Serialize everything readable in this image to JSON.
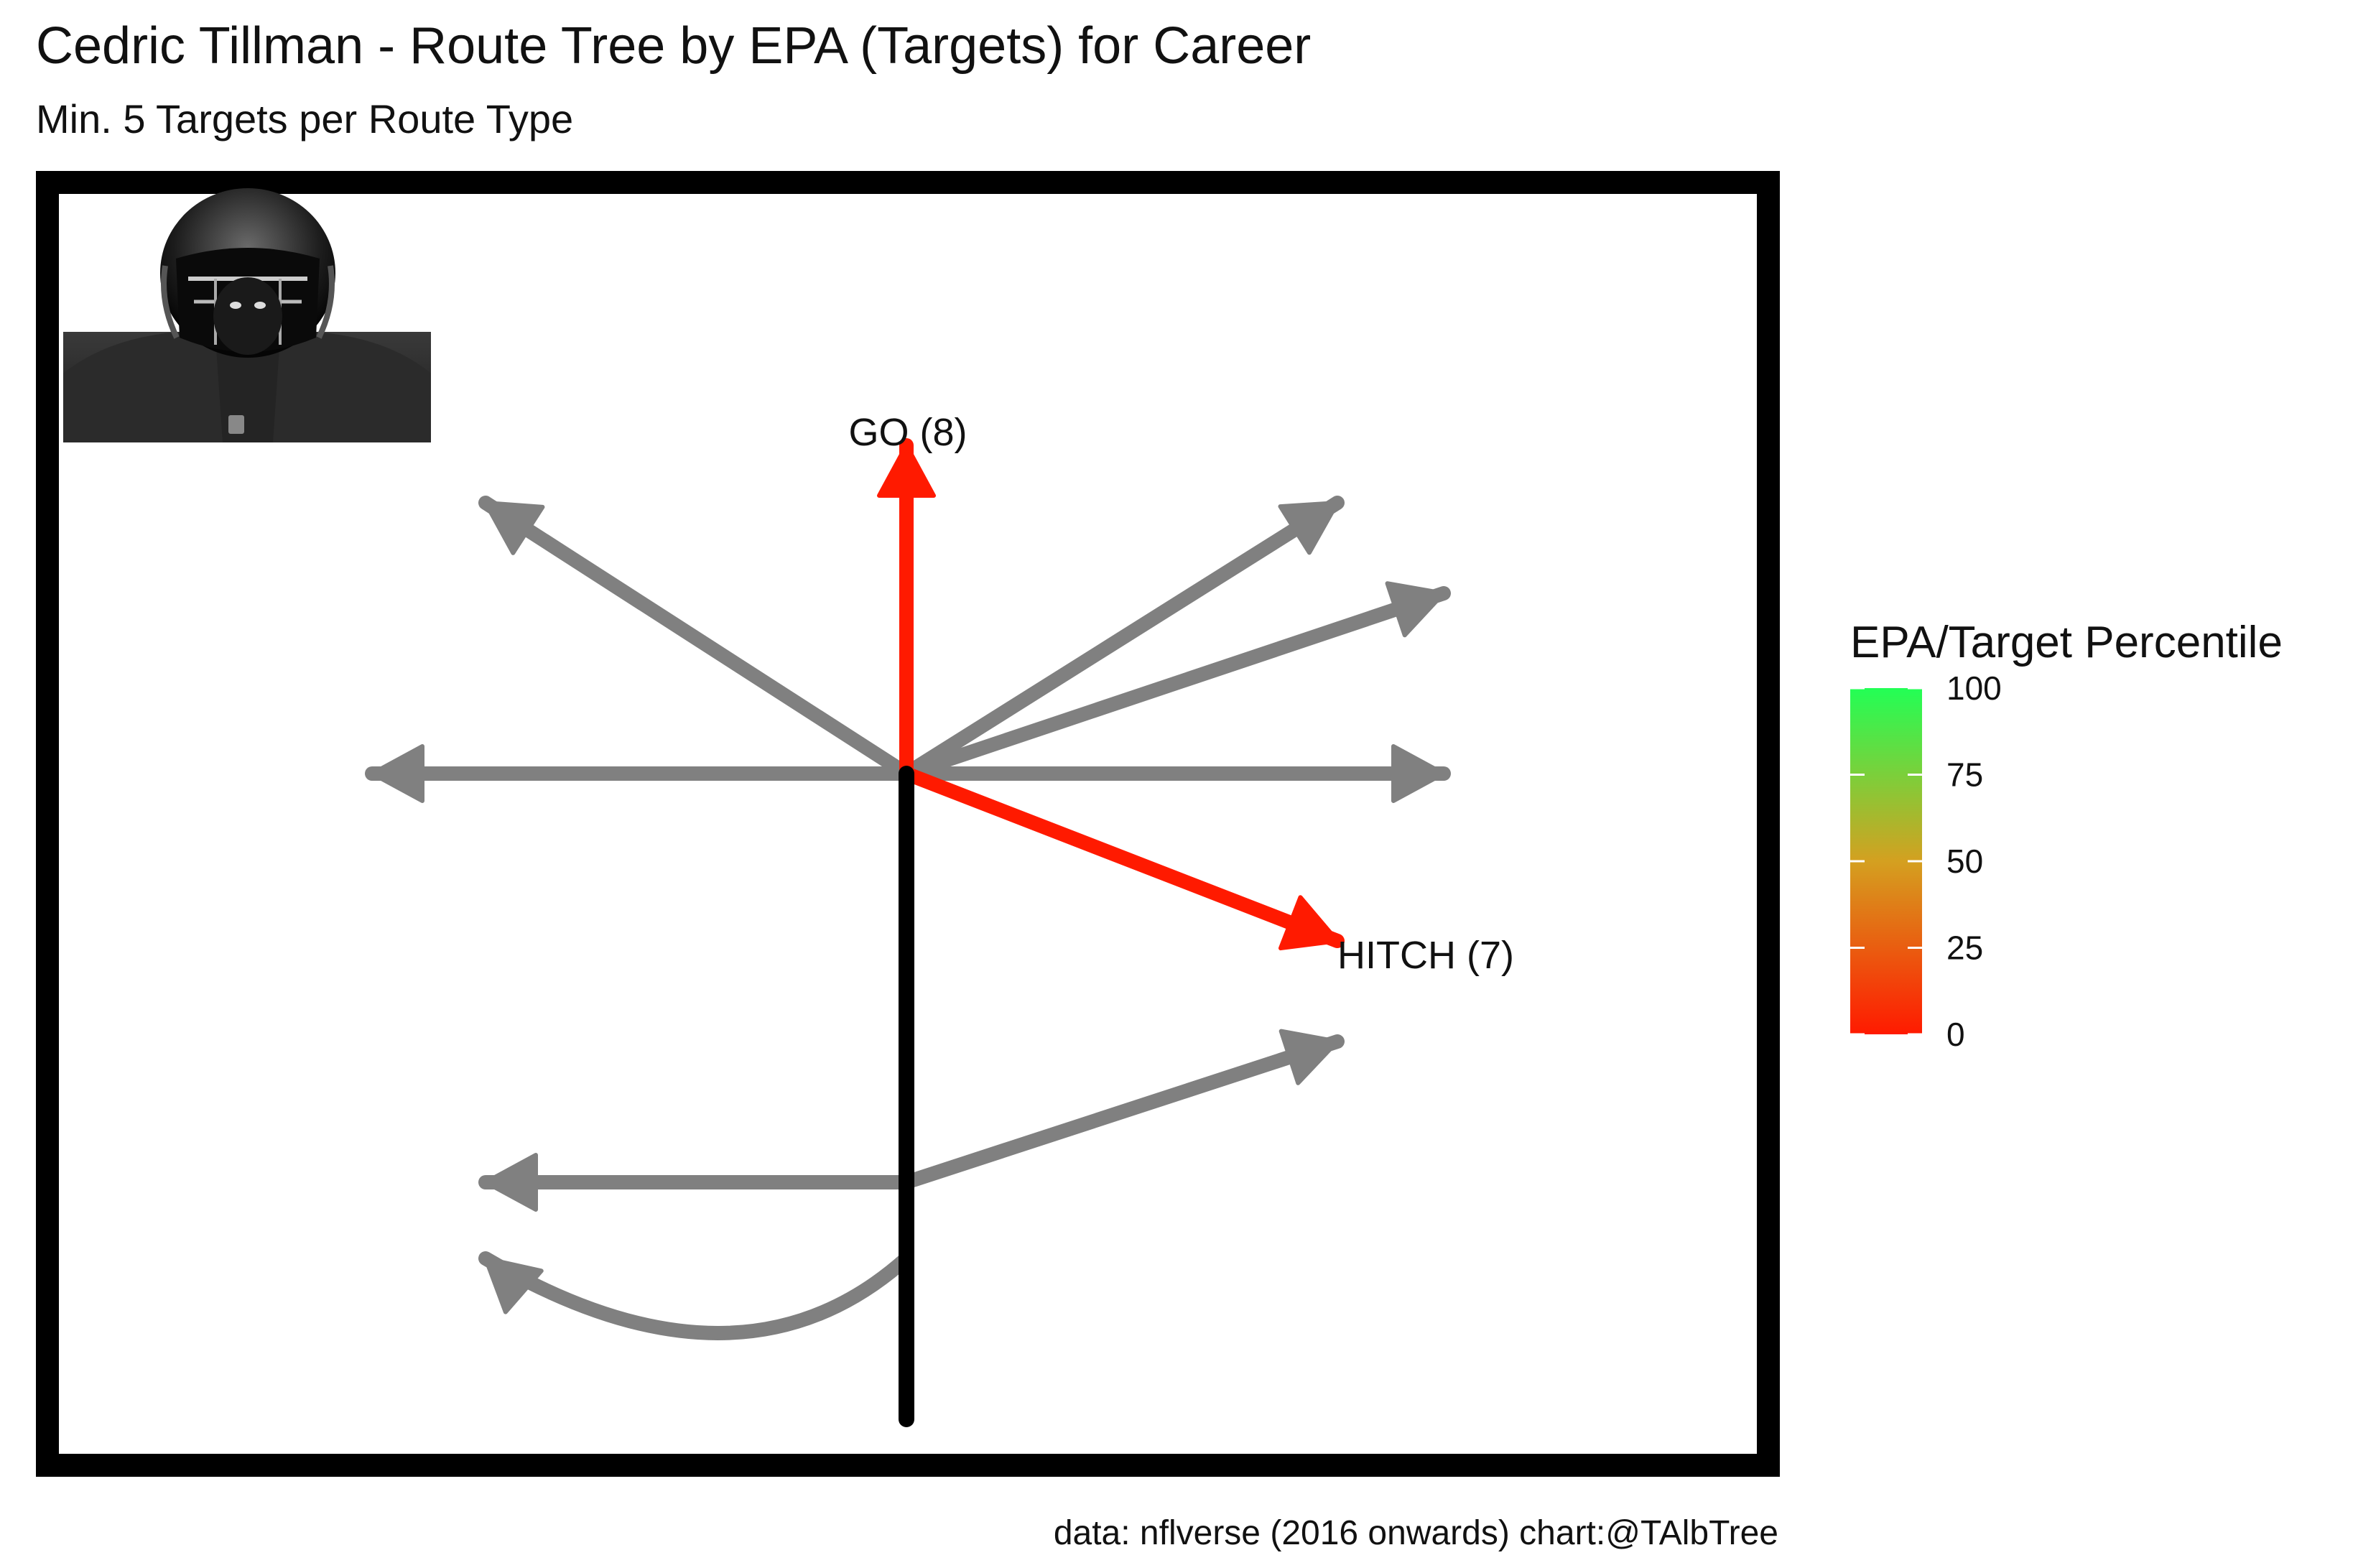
{
  "chart_data": {
    "type": "route-tree",
    "title": "Cedric Tillman - Route Tree by EPA (Targets) for Career",
    "subtitle": "Min. 5 Targets per Route Type",
    "caption": "data: nflverse (2016 onwards)  chart:@TAlbTree",
    "routes": [
      {
        "route": "GO",
        "targets": 8,
        "label": "GO (8)",
        "color": "#ff1a00",
        "labeled": true
      },
      {
        "route": "HITCH",
        "targets": 7,
        "label": "HITCH (7)",
        "color": "#ff1a00",
        "labeled": true
      },
      {
        "route": "",
        "color": "#808080",
        "labeled": false
      },
      {
        "route": "",
        "color": "#808080",
        "labeled": false
      },
      {
        "route": "",
        "color": "#808080",
        "labeled": false
      },
      {
        "route": "",
        "color": "#808080",
        "labeled": false
      },
      {
        "route": "",
        "color": "#808080",
        "labeled": false
      },
      {
        "route": "",
        "color": "#808080",
        "labeled": false
      },
      {
        "route": "",
        "color": "#808080",
        "labeled": false
      },
      {
        "route": "",
        "color": "#808080",
        "labeled": false
      }
    ],
    "stem_color": "#000000",
    "legend": {
      "title": "EPA/Target Percentile",
      "ticks": [
        0,
        25,
        50,
        75,
        100
      ],
      "range": [
        0,
        100
      ],
      "color_low": "#ff1a00",
      "color_mid": "#d4a020",
      "color_high": "#22ff55",
      "position": "right"
    },
    "grid": false
  },
  "image": {
    "icon": "player-headshot-icon"
  }
}
